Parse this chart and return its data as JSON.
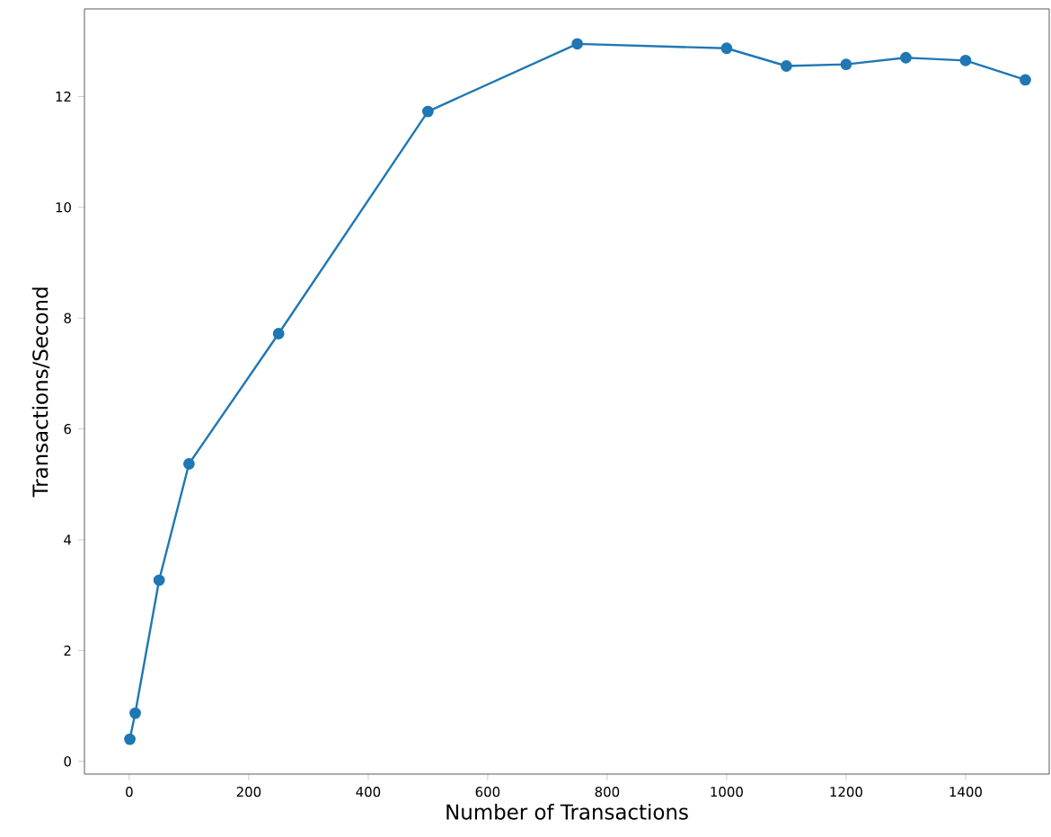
{
  "chart_data": {
    "type": "line",
    "xlabel": "Number of Transactions",
    "ylabel": "Transactions/Second",
    "x": [
      1,
      10,
      50,
      100,
      250,
      500,
      750,
      1000,
      1100,
      1200,
      1300,
      1400,
      1500
    ],
    "series": [
      {
        "color": "#1f77b4",
        "values": [
          0.4,
          0.87,
          3.27,
          5.37,
          7.72,
          11.73,
          12.95,
          12.87,
          12.55,
          12.58,
          12.7,
          12.65,
          12.3
        ]
      }
    ],
    "marker": "circle",
    "line_style": "solid",
    "xlim": [
      -75,
      1540
    ],
    "ylim": [
      -0.23,
      13.58
    ],
    "xticks": [
      0,
      200,
      400,
      600,
      800,
      1000,
      1200,
      1400
    ],
    "yticks": [
      0,
      2,
      4,
      6,
      8,
      10,
      12
    ]
  }
}
